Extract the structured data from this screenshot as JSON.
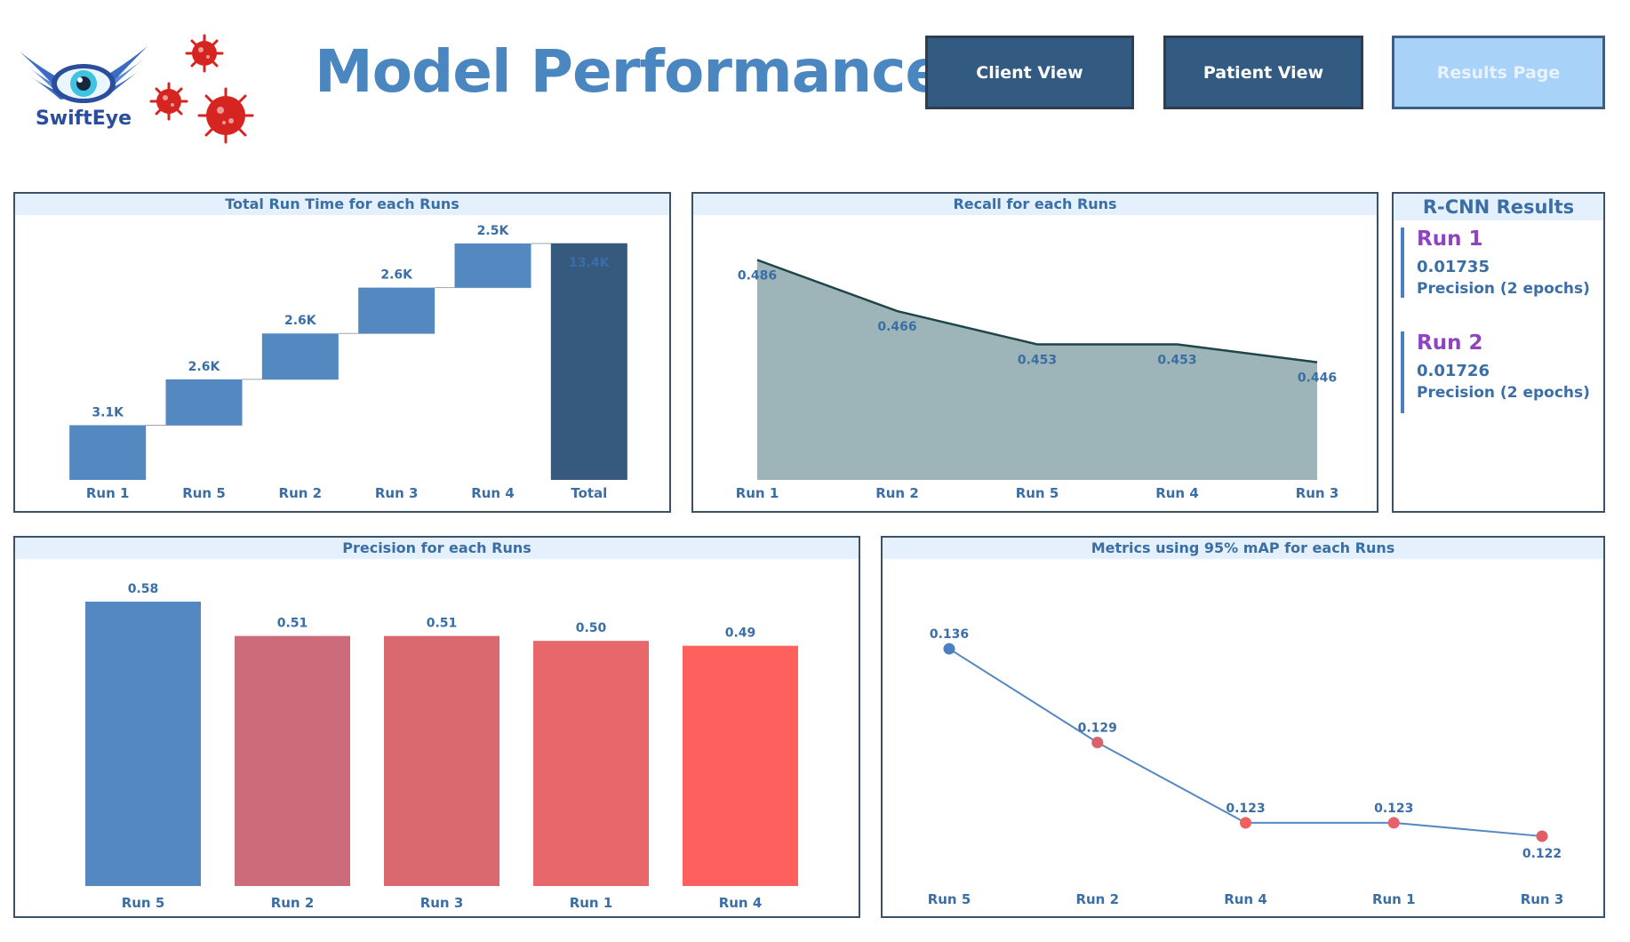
{
  "brand": {
    "name": "SwiftEye"
  },
  "header": {
    "title": "Model Performance"
  },
  "nav": {
    "client_view": "Client View",
    "patient_view": "Patient View",
    "results_page": "Results Page"
  },
  "charts": [
    {
      "type": "bar",
      "variant": "waterfall",
      "title": "Total Run Time for each Runs",
      "categories": [
        "Run 1",
        "Run 5",
        "Run 2",
        "Run 3",
        "Run 4",
        "Total"
      ],
      "values": [
        3100,
        2600,
        2600,
        2600,
        2500,
        13400
      ],
      "labels": [
        "3.1K",
        "2.6K",
        "2.6K",
        "2.6K",
        "2.5K",
        "13.4K"
      ],
      "ylim": [
        0,
        13400
      ]
    },
    {
      "type": "area",
      "title": "Recall for each Runs",
      "categories": [
        "Run 1",
        "Run 2",
        "Run 5",
        "Run 4",
        "Run 3"
      ],
      "values": [
        0.486,
        0.466,
        0.453,
        0.453,
        0.446
      ],
      "labels": [
        "0.486",
        "0.466",
        "0.453",
        "0.453",
        "0.446"
      ],
      "ylim": [
        0.4,
        0.49
      ]
    },
    {
      "type": "bar",
      "title": "Precision for each Runs",
      "categories": [
        "Run 5",
        "Run 2",
        "Run 3",
        "Run 1",
        "Run 4"
      ],
      "values": [
        0.58,
        0.51,
        0.51,
        0.5,
        0.49
      ],
      "labels": [
        "0.58",
        "0.51",
        "0.51",
        "0.50",
        "0.49"
      ],
      "colors": [
        "#5389c0",
        "#cc6b79",
        "#d9686f",
        "#e8676b",
        "#fe605e"
      ],
      "ylim": [
        0,
        0.58
      ]
    },
    {
      "type": "line",
      "title": "Metrics using 95% mAP for each Runs",
      "categories": [
        "Run 5",
        "Run 2",
        "Run 4",
        "Run 1",
        "Run 3"
      ],
      "values": [
        0.136,
        0.129,
        0.123,
        0.123,
        0.122
      ],
      "labels": [
        "0.136",
        "0.129",
        "0.123",
        "0.123",
        "0.122"
      ],
      "point_colors": [
        "#4a7fc1",
        "#d9636c",
        "#f0605f",
        "#e8606a",
        "#e05f66"
      ],
      "ylim": [
        0.121,
        0.137
      ]
    }
  ],
  "rcnn": {
    "title": "R-CNN Results",
    "runs": [
      {
        "name": "Run 1",
        "value": "0.01735",
        "metric": "Precision (2 epochs)"
      },
      {
        "name": "Run 2",
        "value": "0.01726",
        "metric": "Precision (2 epochs)"
      }
    ]
  }
}
